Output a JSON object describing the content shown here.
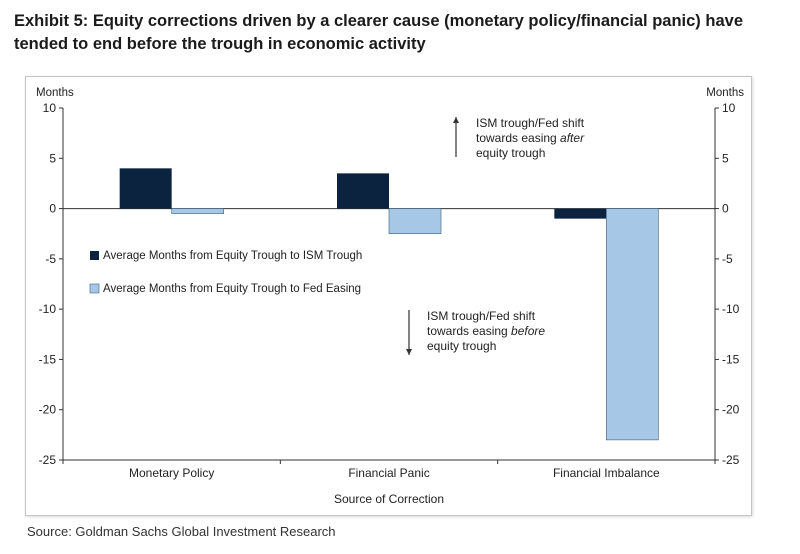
{
  "title": "Exhibit 5: Equity corrections driven by a clearer cause (monetary policy/financial panic) have tended to end before the trough in economic activity",
  "source": "Source: Goldman Sachs Global Investment Research",
  "colors": {
    "ism_series": "#0c2340",
    "fed_series": "#a6c8e6",
    "axis": "#333333"
  },
  "chart_data": {
    "type": "bar",
    "title": "",
    "xlabel": "Source of Correction",
    "ylabel_left": "Months",
    "ylabel_right": "Months",
    "ylim": [
      -25,
      10
    ],
    "yticks": [
      10,
      5,
      0,
      -5,
      -10,
      -15,
      -20,
      -25
    ],
    "grid": false,
    "legend_position": "left-middle",
    "categories": [
      "Monetary Policy",
      "Financial Panic",
      "Financial Imbalance"
    ],
    "series": [
      {
        "name": "Average Months from Equity Trough to ISM Trough",
        "values": [
          4,
          3.5,
          -1
        ]
      },
      {
        "name": "Average Months from Equity Trough to Fed Easing",
        "values": [
          -0.5,
          -2.5,
          -23
        ]
      }
    ],
    "annotations": {
      "up": {
        "arrow": "up",
        "lines": [
          [
            {
              "text": "ISM trough/Fed  shift",
              "italic": false
            }
          ],
          [
            {
              "text": "towards easing ",
              "italic": false
            },
            {
              "text": "after",
              "italic": true
            }
          ],
          [
            {
              "text": "equity trough",
              "italic": false
            }
          ]
        ]
      },
      "down": {
        "arrow": "down",
        "lines": [
          [
            {
              "text": "ISM trough/Fed  shift",
              "italic": false
            }
          ],
          [
            {
              "text": "towards easing ",
              "italic": false
            },
            {
              "text": "before",
              "italic": true
            }
          ],
          [
            {
              "text": "equity trough",
              "italic": false
            }
          ]
        ]
      }
    }
  }
}
